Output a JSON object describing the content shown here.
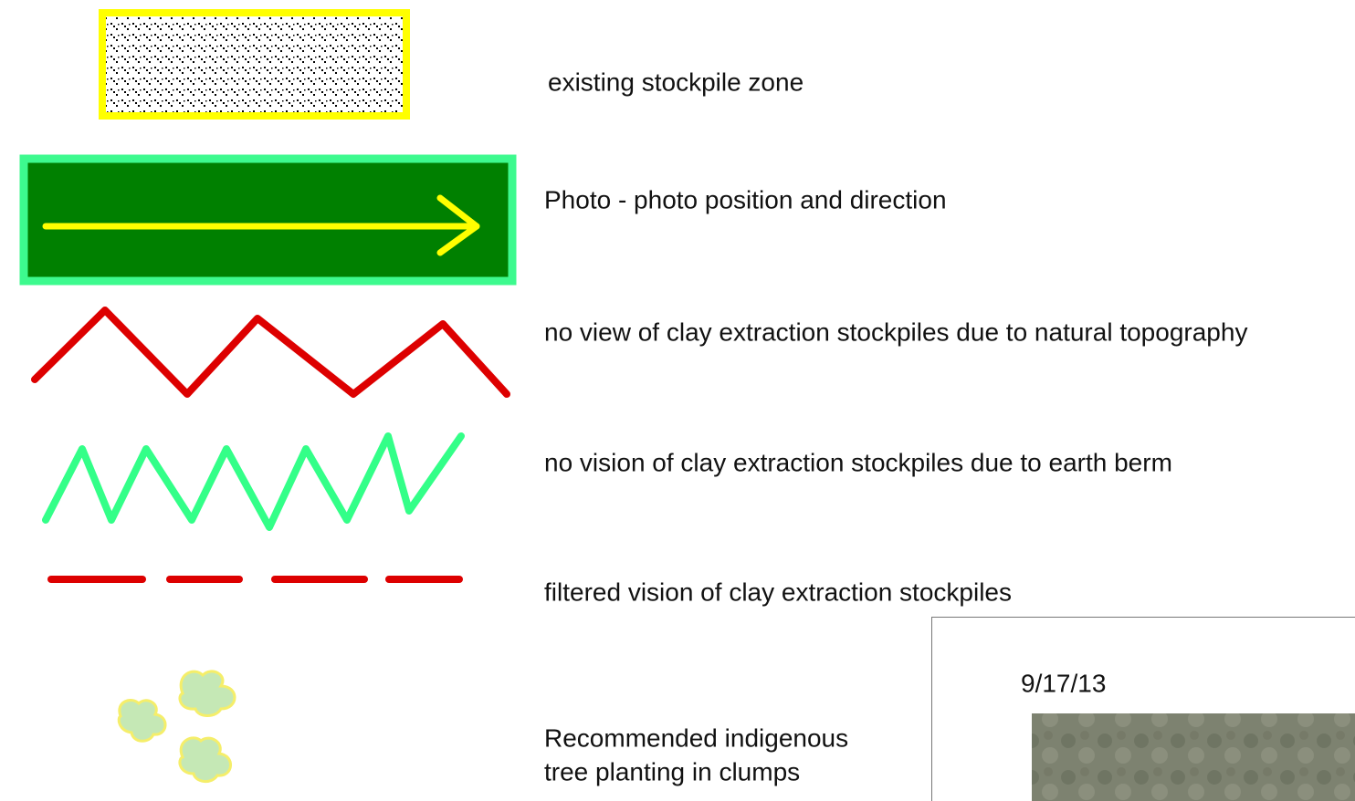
{
  "legend": {
    "items": [
      {
        "label": "existing stockpile zone"
      },
      {
        "label": "Photo - photo position and direction"
      },
      {
        "label": "no view of clay extraction stockpiles due to natural topography"
      },
      {
        "label": "no vision of clay extraction stockpiles due to earth berm"
      },
      {
        "label": "filtered vision of clay extraction stockpiles"
      },
      {
        "lines": [
          "Recommended indigenous",
          "tree planting in clumps"
        ]
      }
    ]
  },
  "inset": {
    "date": "9/17/13"
  }
}
